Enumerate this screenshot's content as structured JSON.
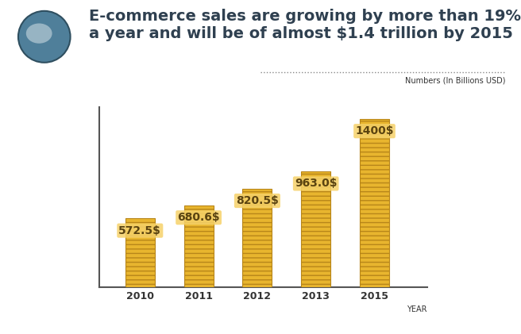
{
  "chart_data": {
    "type": "bar",
    "title": "E-commerce sales are growing by more than 19% a year and will be of almost $1.4 trillion by 2015",
    "subtitle": "Numbers (In Billions USD)",
    "x_label": "YEAR",
    "categories": [
      "2010",
      "2011",
      "2012",
      "2013",
      "2015"
    ],
    "values": [
      572.5,
      680.6,
      820.5,
      963.0,
      1400
    ],
    "value_labels": [
      "572.5$",
      "680.6$",
      "820.5$",
      "963.0$",
      "1400$"
    ],
    "data_labels": true,
    "color": "#e8b52e",
    "ylim": [
      0,
      1500
    ],
    "tick_labels": "x",
    "grid": false
  }
}
